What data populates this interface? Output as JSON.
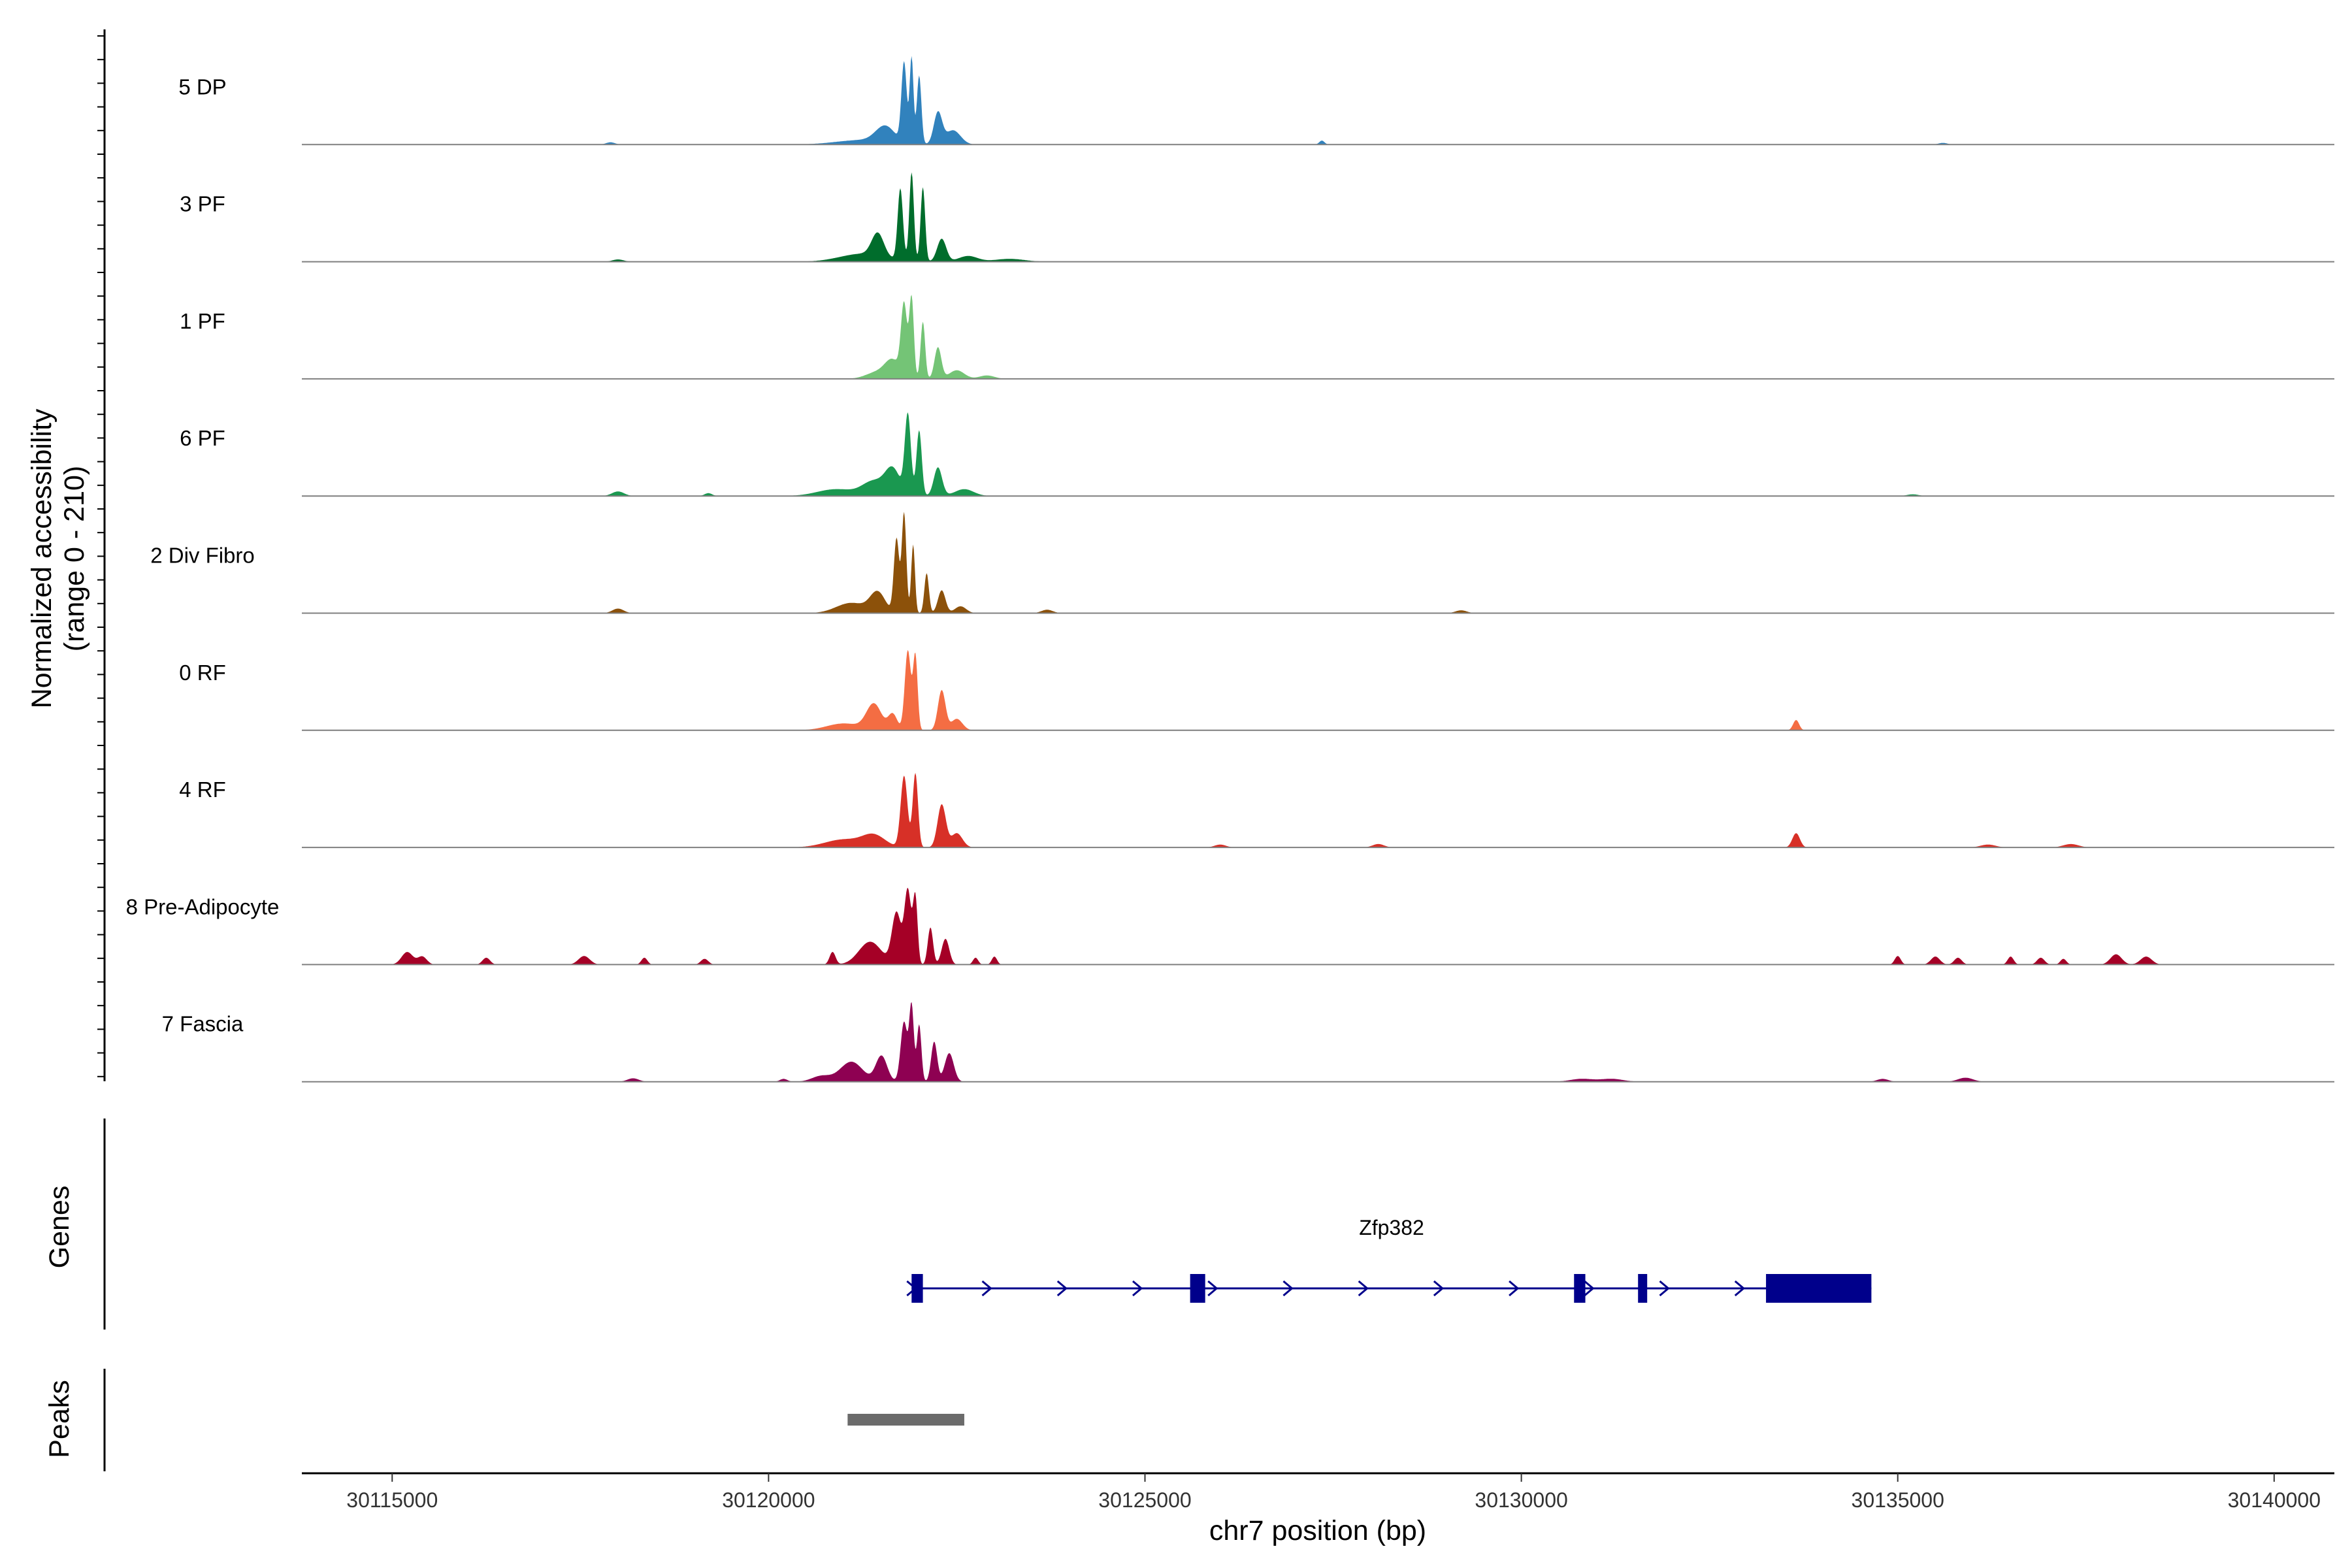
{
  "chart_data": {
    "type": "area",
    "title": "",
    "ylabel_line1": "Normalized accessibility",
    "ylabel_line2": "(range 0 - 210)",
    "ylim": [
      0,
      210
    ],
    "xlabel": "chr7 position (bp)",
    "chromosome": "chr7",
    "xlim": [
      30113800,
      30140800
    ],
    "x_ticks": [
      30115000,
      30120000,
      30125000,
      30130000,
      30135000,
      30140000
    ],
    "x_tick_labels": [
      "30115000",
      "30120000",
      "30125000",
      "30130000",
      "30135000",
      "30140000"
    ],
    "tracks": [
      {
        "name": "5 DP",
        "color": "#3182BD",
        "peaks": [
          [
            30121250,
            700,
            8
          ],
          [
            30121550,
            250,
            28
          ],
          [
            30121800,
            70,
            140
          ],
          [
            30121900,
            50,
            150
          ],
          [
            30122000,
            60,
            120
          ],
          [
            30122250,
            110,
            55
          ],
          [
            30122450,
            200,
            25
          ],
          [
            30117900,
            120,
            4
          ],
          [
            30127350,
            70,
            7
          ],
          [
            30135600,
            120,
            3
          ]
        ]
      },
      {
        "name": "3 PF",
        "color": "#006D2C",
        "peaks": [
          [
            30121250,
            600,
            14
          ],
          [
            30121450,
            160,
            40
          ],
          [
            30121750,
            70,
            125
          ],
          [
            30121900,
            60,
            155
          ],
          [
            30122050,
            60,
            130
          ],
          [
            30122300,
            120,
            40
          ],
          [
            30122650,
            250,
            10
          ],
          [
            30123200,
            400,
            5
          ],
          [
            30118000,
            150,
            4
          ]
        ]
      },
      {
        "name": "1 PF",
        "color": "#74C476",
        "peaks": [
          [
            30121450,
            300,
            12
          ],
          [
            30121650,
            200,
            30
          ],
          [
            30121800,
            80,
            125
          ],
          [
            30121900,
            60,
            140
          ],
          [
            30122050,
            60,
            100
          ],
          [
            30122250,
            90,
            55
          ],
          [
            30122500,
            200,
            15
          ],
          [
            30122900,
            200,
            6
          ]
        ]
      },
      {
        "name": "6 PF",
        "color": "#1A9850",
        "peaks": [
          [
            30120900,
            500,
            12
          ],
          [
            30121400,
            300,
            25
          ],
          [
            30121650,
            200,
            45
          ],
          [
            30121850,
            80,
            140
          ],
          [
            30122000,
            70,
            115
          ],
          [
            30122250,
            110,
            50
          ],
          [
            30122600,
            250,
            12
          ],
          [
            30118000,
            160,
            8
          ],
          [
            30119200,
            100,
            5
          ],
          [
            30135200,
            150,
            3
          ]
        ]
      },
      {
        "name": "2 Div Fibro",
        "color": "#8C510A",
        "peaks": [
          [
            30121100,
            400,
            18
          ],
          [
            30121450,
            200,
            35
          ],
          [
            30121700,
            70,
            130
          ],
          [
            30121800,
            60,
            175
          ],
          [
            30121920,
            50,
            120
          ],
          [
            30122100,
            60,
            70
          ],
          [
            30122300,
            100,
            40
          ],
          [
            30122550,
            150,
            12
          ],
          [
            30118000,
            150,
            8
          ],
          [
            30123700,
            150,
            6
          ],
          [
            30129200,
            150,
            5
          ]
        ]
      },
      {
        "name": "0 RF",
        "color": "#F46D43",
        "peaks": [
          [
            30121000,
            450,
            12
          ],
          [
            30121400,
            200,
            45
          ],
          [
            30121650,
            120,
            28
          ],
          [
            30121850,
            80,
            140
          ],
          [
            30121950,
            60,
            130
          ],
          [
            30122300,
            100,
            70
          ],
          [
            30122500,
            150,
            20
          ],
          [
            30133650,
            80,
            18
          ]
        ]
      },
      {
        "name": "4 RF",
        "color": "#D73027",
        "peaks": [
          [
            30121000,
            500,
            14
          ],
          [
            30121400,
            300,
            20
          ],
          [
            30121800,
            90,
            125
          ],
          [
            30121950,
            70,
            130
          ],
          [
            30122300,
            110,
            75
          ],
          [
            30122500,
            150,
            25
          ],
          [
            30133650,
            100,
            25
          ],
          [
            30128100,
            150,
            6
          ],
          [
            30126000,
            150,
            5
          ],
          [
            30136200,
            200,
            5
          ],
          [
            30137300,
            200,
            6
          ]
        ]
      },
      {
        "name": "8 Pre-Adipocyte",
        "color": "#A50026",
        "peaks": [
          [
            30115200,
            150,
            22
          ],
          [
            30115400,
            120,
            14
          ],
          [
            30116250,
            100,
            12
          ],
          [
            30117550,
            150,
            15
          ],
          [
            30118350,
            80,
            12
          ],
          [
            30119150,
            100,
            10
          ],
          [
            30120850,
            80,
            22
          ],
          [
            30121350,
            300,
            40
          ],
          [
            30121700,
            120,
            90
          ],
          [
            30121850,
            90,
            130
          ],
          [
            30121950,
            60,
            115
          ],
          [
            30122150,
            70,
            65
          ],
          [
            30122350,
            100,
            45
          ],
          [
            30122750,
            70,
            12
          ],
          [
            30123000,
            70,
            14
          ],
          [
            30135000,
            80,
            15
          ],
          [
            30135500,
            120,
            14
          ],
          [
            30135800,
            100,
            12
          ],
          [
            30136500,
            80,
            14
          ],
          [
            30136900,
            100,
            12
          ],
          [
            30137200,
            80,
            10
          ],
          [
            30137900,
            150,
            18
          ],
          [
            30138300,
            150,
            14
          ]
        ]
      },
      {
        "name": "7 Fascia",
        "color": "#8E0152",
        "peaks": [
          [
            30120700,
            250,
            10
          ],
          [
            30121100,
            300,
            35
          ],
          [
            30121500,
            150,
            45
          ],
          [
            30121800,
            90,
            105
          ],
          [
            30121900,
            60,
            130
          ],
          [
            30122000,
            60,
            100
          ],
          [
            30122200,
            80,
            70
          ],
          [
            30122400,
            120,
            50
          ],
          [
            30118200,
            150,
            6
          ],
          [
            30120200,
            100,
            5
          ],
          [
            30130800,
            300,
            5
          ],
          [
            30131200,
            300,
            5
          ],
          [
            30134800,
            150,
            5
          ],
          [
            30135900,
            200,
            7
          ]
        ]
      }
    ],
    "genes": {
      "panel_label": "Genes",
      "name": "Zfp382",
      "strand": "+",
      "color": "#00008B",
      "start": 30121900,
      "end": 30134650,
      "exons": [
        [
          30121900,
          30122050
        ],
        [
          30125600,
          30125800
        ],
        [
          30130700,
          30130850
        ],
        [
          30131550,
          30131650
        ],
        [
          30133250,
          30134650
        ]
      ]
    },
    "peaks_panel": {
      "label": "Peaks",
      "color": "#6B6B6B",
      "regions": [
        [
          30121050,
          30122600
        ]
      ]
    }
  }
}
